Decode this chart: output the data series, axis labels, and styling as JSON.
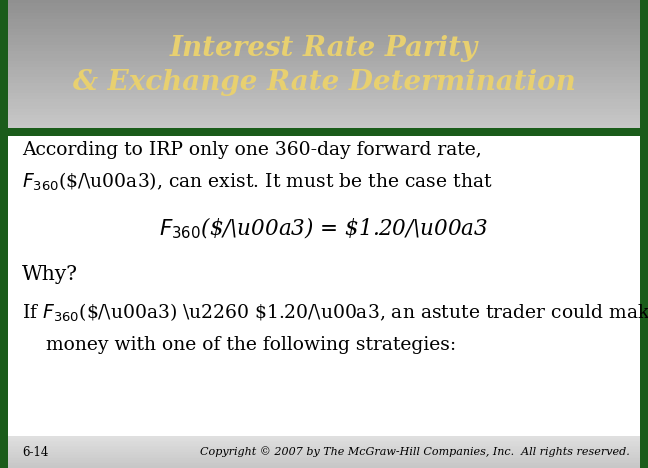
{
  "title_line1": "Interest Rate Parity",
  "title_line2": "& Exchange Rate Determination",
  "title_color": "#e8d070",
  "body_bg_color": "#ffffff",
  "border_color": "#1a5c1a",
  "footer_bg_color": "#d0d0d0",
  "footer_left": "6-14",
  "footer_right": "Copyright © 2007 by The McGraw-Hill Companies, Inc.  All rights reserved.",
  "title_fontsize": 20,
  "body_fontsize": 13.5,
  "footer_fontsize": 8.5
}
